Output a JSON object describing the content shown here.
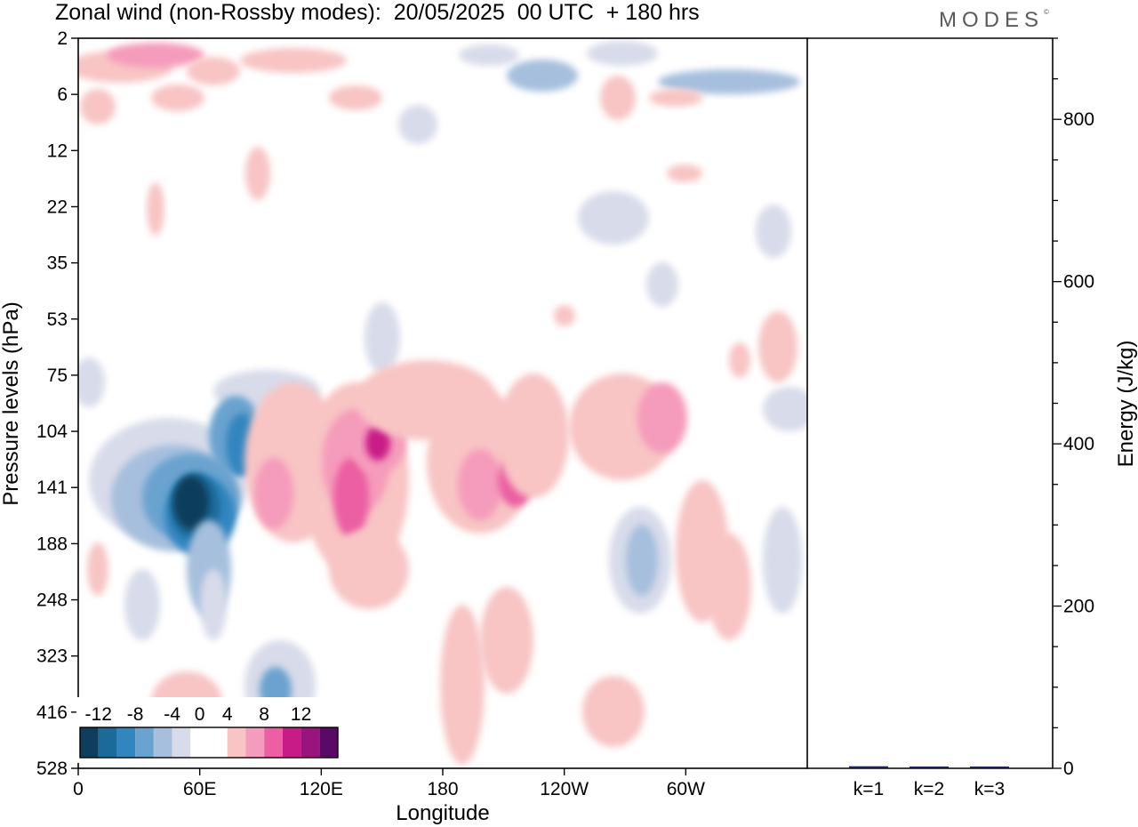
{
  "header": {
    "title": "Zonal wind (non-Rossby modes):  20/05/2025  00 UTC  + 180 hrs",
    "logo_text": "MODES",
    "logo_mark": "©"
  },
  "chart_data": [
    {
      "type": "heatmap",
      "title": "Zonal wind (non-Rossby modes):  20/05/2025  00 UTC  + 180 hrs",
      "xlabel": "Longitude",
      "ylabel": "Pressure levels (hPa)",
      "x_ticks": [
        "0",
        "60E",
        "120E",
        "180",
        "120W",
        "60W"
      ],
      "x_tick_degrees": [
        0,
        60,
        120,
        180,
        240,
        300
      ],
      "xlim": [
        0,
        360
      ],
      "y_ticks": [
        "2",
        "6",
        "12",
        "22",
        "35",
        "53",
        "75",
        "104",
        "141",
        "188",
        "248",
        "323",
        "416",
        "528"
      ],
      "y_direction": "downward",
      "colorbar": {
        "labels": [
          "-12",
          "-8",
          "-4",
          "0",
          "4",
          "8",
          "12"
        ],
        "label_positions": [
          1,
          3,
          5,
          6.5,
          8,
          10,
          12
        ],
        "levels": [
          -14,
          -12,
          -10,
          -8,
          -6,
          -4,
          -2,
          0,
          2,
          4,
          6,
          8,
          10,
          12
        ],
        "colors": [
          "#0f3d5c",
          "#1a6a9a",
          "#3286c0",
          "#6aa3cf",
          "#a6bfdd",
          "#d8dbea",
          "#ffffff",
          "#ffffff",
          "#f8c4c4",
          "#f59bbb",
          "#ec5fa3",
          "#c91b87",
          "#99157d",
          "#5a0a66"
        ],
        "position": "bottom-left"
      },
      "features": [
        {
          "sign": "negative",
          "peak": -14,
          "lon": 55,
          "level": 141,
          "label": "strong easterly core"
        },
        {
          "sign": "positive",
          "peak": 8,
          "lon": 130,
          "level": 141,
          "label": "westerly band"
        },
        {
          "sign": "positive",
          "peak": 8,
          "lon": 145,
          "level": 104,
          "label": "westerly band"
        },
        {
          "sign": "negative",
          "peak": -6,
          "lon": 278,
          "level": 188,
          "label": "easterly cell"
        },
        {
          "sign": "negative",
          "peak": -8,
          "lon": 97,
          "level": 416,
          "label": "lower easterly cell"
        }
      ]
    },
    {
      "type": "bar",
      "ylabel": "Energy (J/kg)",
      "categories": [
        "k=1",
        "k=2",
        "k=3"
      ],
      "values": [
        2.5,
        1.5,
        1.0
      ],
      "ylim": [
        0,
        900
      ],
      "y_ticks": [
        "0",
        "200",
        "400",
        "600",
        "800"
      ],
      "y_tick_values": [
        0,
        200,
        400,
        600,
        800
      ],
      "bar_color": "#1a1f5e"
    }
  ]
}
